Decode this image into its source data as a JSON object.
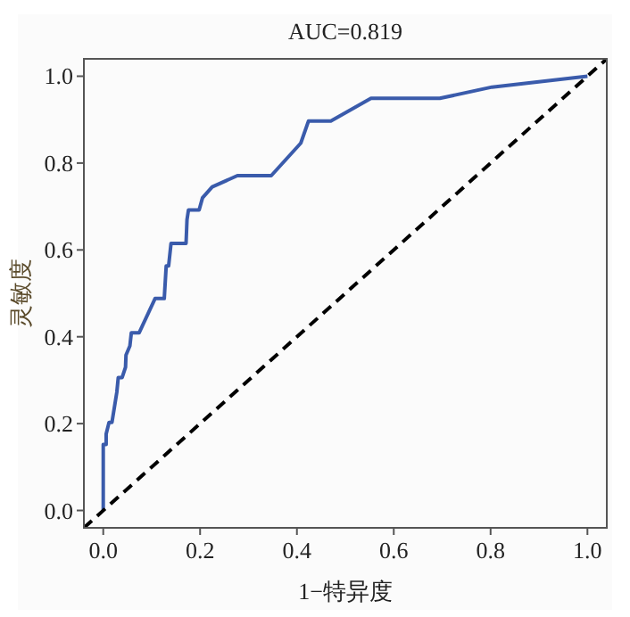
{
  "chart_data": {
    "type": "line",
    "title": "AUC=0.819",
    "xlabel": "1−特异度",
    "ylabel": "灵敏度",
    "xlim": [
      -0.04,
      1.04
    ],
    "ylim": [
      -0.04,
      1.04
    ],
    "xticks": [
      {
        "value": 0,
        "label": "0.0"
      },
      {
        "value": 0.2,
        "label": "0.2"
      },
      {
        "value": 0.4,
        "label": "0.4"
      },
      {
        "value": 0.6,
        "label": "0.6"
      },
      {
        "value": 0.8,
        "label": "0.8"
      },
      {
        "value": 1,
        "label": "1.0"
      }
    ],
    "yticks": [
      {
        "value": 0,
        "label": "0.0"
      },
      {
        "value": 0.2,
        "label": "0.2"
      },
      {
        "value": 0.4,
        "label": "0.4"
      },
      {
        "value": 0.6,
        "label": "0.6"
      },
      {
        "value": 0.8,
        "label": "0.8"
      },
      {
        "value": 1,
        "label": "1.0"
      }
    ],
    "series": [
      {
        "color": "#3a5bab",
        "line_style": "solid",
        "x": [
          0,
          0,
          0.006,
          0.006,
          0.012,
          0.018,
          0.028,
          0.031,
          0.039,
          0.046,
          0.047,
          0.055,
          0.058,
          0.074,
          0.107,
          0.126,
          0.13,
          0.135,
          0.14,
          0.171,
          0.173,
          0.176,
          0.198,
          0.205,
          0.225,
          0.277,
          0.347,
          0.408,
          0.424,
          0.47,
          0.553,
          0.695,
          0.803,
          1
        ],
        "values": [
          0,
          0.152,
          0.152,
          0.176,
          0.203,
          0.203,
          0.272,
          0.306,
          0.306,
          0.33,
          0.358,
          0.379,
          0.409,
          0.409,
          0.488,
          0.488,
          0.563,
          0.563,
          0.615,
          0.615,
          0.67,
          0.692,
          0.692,
          0.72,
          0.745,
          0.771,
          0.771,
          0.846,
          0.897,
          0.897,
          0.949,
          0.949,
          0.975,
          1
        ]
      },
      {
        "color": "#000000",
        "line_style": "dashed",
        "x": [
          -0.04,
          1.04
        ],
        "values": [
          -0.04,
          1.04
        ]
      }
    ]
  }
}
